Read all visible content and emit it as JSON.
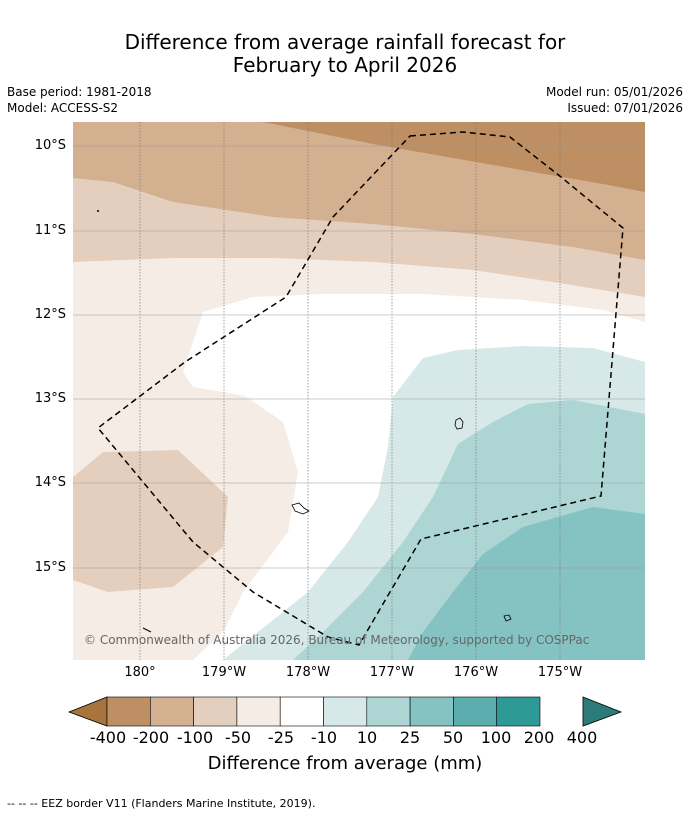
{
  "title_line1": "Difference from average rainfall forecast for",
  "title_line2": "February to April 2026",
  "base_period": "Base period: 1981-2018",
  "model": "Model: ACCESS-S2",
  "model_run": "Model run: 05/01/2026",
  "issued": "Issued: 07/01/2026",
  "lat_labels": [
    "10°S",
    "11°S",
    "12°S",
    "13°S",
    "14°S",
    "15°S"
  ],
  "lon_labels": [
    "180°",
    "179°W",
    "178°W",
    "177°W",
    "176°W",
    "175°W"
  ],
  "copyright": "© Commonwealth of Australia 2026, Bureau of Meteorology, supported by COSPPac",
  "colorbar": {
    "title": "Difference from average (mm)",
    "labels": [
      "-400",
      "-200",
      "-100",
      "-50",
      "-25",
      "-10",
      "10",
      "25",
      "50",
      "100",
      "200",
      "400"
    ],
    "colors": [
      "#a8743c",
      "#bd8f62",
      "#d3b08f",
      "#e4cfbe",
      "#f5ece6",
      "#ffffff",
      "#d6e9e8",
      "#acd5d4",
      "#85c3c2",
      "#5cadad",
      "#2e9a98",
      "#2b7b79"
    ]
  },
  "footer": "--  --  -- EEZ border V11 (Flanders Marine Institute, 2019)."
}
